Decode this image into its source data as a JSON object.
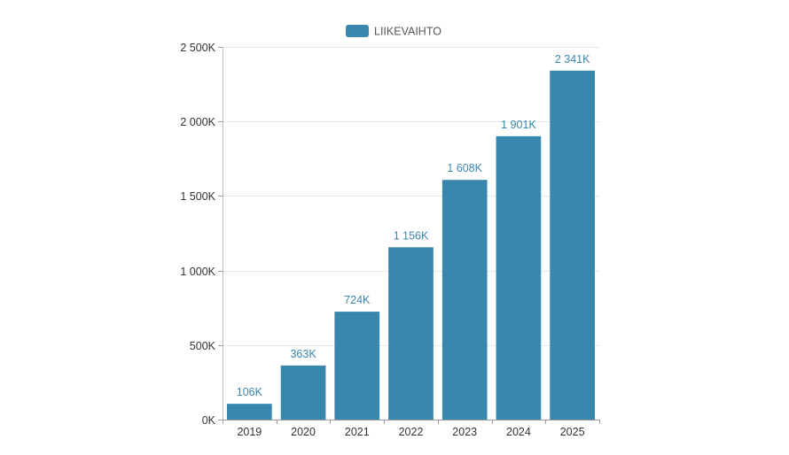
{
  "chart_data": {
    "type": "bar",
    "title": "",
    "xlabel": "",
    "ylabel": "",
    "legend": {
      "entries": [
        "LIIKEVAIHTO"
      ],
      "placement": "top-center"
    },
    "categories": [
      "2019",
      "2020",
      "2021",
      "2022",
      "2023",
      "2024",
      "2025"
    ],
    "series": [
      {
        "name": "LIIKEVAIHTO",
        "values": [
          106,
          363,
          724,
          1156,
          1608,
          1901,
          2341
        ],
        "color": "#3987ac"
      }
    ],
    "value_labels": [
      "106K",
      "363K",
      "724K",
      "1 156K",
      "1 608K",
      "1 901K",
      "2 341K"
    ],
    "ylim": [
      0,
      2500
    ],
    "yticks": [
      0,
      500,
      1000,
      1500,
      2000,
      2500
    ],
    "ytick_labels": [
      "0K",
      "500K",
      "1 000K",
      "1 500K",
      "2 000K",
      "2 500K"
    ],
    "grid": true
  }
}
